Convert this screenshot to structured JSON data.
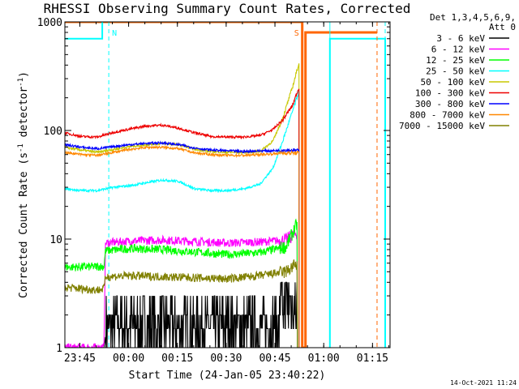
{
  "chart_data": {
    "type": "line",
    "title": "RHESSI Observing Summary Count Rates, Corrected",
    "xlabel": "Start Time (24-Jan-05 23:40:22)",
    "ylabel_parts": [
      "Corrected Count Rate (s",
      "-1",
      " detector",
      "-1",
      ")"
    ],
    "x_unit": "minutes after 23:40:22",
    "xlim": [
      0,
      100
    ],
    "ylim": [
      1,
      1000
    ],
    "yscale": "log",
    "x_ticks": [
      {
        "label": "23:45",
        "x": 4.6
      },
      {
        "label": "00:00",
        "x": 19.6
      },
      {
        "label": "00:15",
        "x": 34.6
      },
      {
        "label": "00:30",
        "x": 49.6
      },
      {
        "label": "00:45",
        "x": 64.6
      },
      {
        "label": "01:00",
        "x": 79.6
      },
      {
        "label": "01:15",
        "x": 94.6
      }
    ],
    "y_ticks": [
      {
        "label": "1",
        "y": 1
      },
      {
        "label": "10",
        "y": 10
      },
      {
        "label": "100",
        "y": 100
      },
      {
        "label": "1000",
        "y": 1000
      }
    ],
    "legend_header": [
      "Det 1,3,4,5,6,9,",
      "Att 0"
    ],
    "legend_position": "right",
    "timestamp": "14-Oct-2021 11:24",
    "series": [
      {
        "name": "3 - 6 keV",
        "color": "#000000",
        "x": [
          0,
          12,
          13,
          20,
          30,
          40,
          50,
          60,
          68,
          71.5
        ],
        "y": [
          1,
          1,
          1.6,
          1.4,
          1.5,
          1.4,
          1.6,
          1.5,
          2,
          3
        ]
      },
      {
        "name": "6 - 12 keV",
        "color": "#ff00ff",
        "x": [
          0,
          12,
          12.5,
          20,
          30,
          40,
          50,
          60,
          68,
          71.5
        ],
        "y": [
          1,
          1,
          9.2,
          9.6,
          9.8,
          9.5,
          9.2,
          9.4,
          9.8,
          11.5
        ]
      },
      {
        "name": "12 - 25 keV",
        "color": "#00ff00",
        "x": [
          0,
          12,
          12.5,
          20,
          30,
          40,
          50,
          60,
          68,
          71.5
        ],
        "y": [
          5.5,
          5.6,
          7.8,
          8.2,
          8.0,
          7.6,
          7.2,
          7.5,
          8.5,
          14
        ]
      },
      {
        "name": "25 - 50 keV",
        "color": "#00ffff",
        "x": [
          0,
          5,
          10,
          15,
          20,
          25,
          30,
          35,
          40,
          45,
          50,
          55,
          60,
          64,
          67,
          70,
          72
        ],
        "y": [
          29,
          28,
          28,
          30,
          31,
          33,
          35,
          34,
          29,
          28,
          28,
          29,
          32,
          45,
          80,
          150,
          230
        ]
      },
      {
        "name": "50 - 100 keV",
        "color": "#c8c800",
        "x": [
          0,
          5,
          10,
          15,
          20,
          25,
          30,
          35,
          40,
          45,
          50,
          55,
          60,
          64,
          67,
          70,
          72
        ],
        "y": [
          70,
          66,
          63,
          67,
          71,
          74,
          76,
          74,
          67,
          64,
          63,
          63,
          64,
          80,
          130,
          250,
          420
        ]
      },
      {
        "name": "100 - 300 keV",
        "color": "#ee0000",
        "x": [
          0,
          5,
          10,
          15,
          20,
          25,
          30,
          35,
          40,
          45,
          50,
          55,
          60,
          64,
          67,
          70,
          72
        ],
        "y": [
          95,
          88,
          87,
          96,
          103,
          110,
          112,
          105,
          95,
          88,
          87,
          87,
          90,
          102,
          125,
          170,
          250
        ]
      },
      {
        "name": "300 - 800 keV",
        "color": "#0000ff",
        "x": [
          0,
          5,
          10,
          15,
          20,
          25,
          30,
          35,
          40,
          45,
          50,
          55,
          60,
          64,
          67,
          70,
          72
        ],
        "y": [
          74,
          70,
          68,
          71,
          74,
          76,
          77,
          74,
          69,
          66,
          65,
          64,
          65,
          65,
          66,
          66,
          65
        ]
      },
      {
        "name": "800 - 7000 keV",
        "color": "#ff8800",
        "x": [
          0,
          5,
          10,
          15,
          20,
          25,
          30,
          35,
          40,
          45,
          50,
          55,
          60,
          64,
          67,
          70,
          72
        ],
        "y": [
          63,
          60,
          59,
          63,
          67,
          70,
          70,
          68,
          62,
          60,
          59,
          59,
          60,
          61,
          62,
          62,
          62
        ]
      },
      {
        "name": "7000 - 15000 keV",
        "color": "#808000",
        "x": [
          0,
          5,
          10,
          12,
          12.5,
          20,
          30,
          40,
          50,
          60,
          68,
          71.5
        ],
        "y": [
          3.6,
          3.5,
          3.4,
          3.5,
          4.5,
          4.6,
          4.5,
          4.4,
          4.3,
          4.6,
          5.0,
          6.0
        ]
      }
    ],
    "attenuator_state": {
      "color": "#ff6600",
      "x": [
        0,
        73,
        73,
        74,
        74,
        96
      ],
      "y": [
        1000,
        1000,
        1,
        1,
        800,
        800
      ]
    },
    "saa_flag": {
      "color": "#00ffff",
      "x": [
        0,
        11.5,
        11.5
      ],
      "y": [
        700,
        700,
        1000
      ]
    },
    "night_flag": {
      "color": "#00ffff",
      "x": [
        81.5,
        81.5,
        98.5,
        98.5
      ],
      "y": [
        1,
        700,
        700,
        1
      ]
    },
    "markers": [
      {
        "label": "N",
        "x": 13.5,
        "color": "#00ffff",
        "style": "dashed"
      },
      {
        "label": "S",
        "x": 73,
        "color": "#ff6600",
        "style": "solid"
      },
      {
        "x": 81.5,
        "color": "#00ffff",
        "style": "solid"
      },
      {
        "x": 96,
        "color": "#ff6600",
        "style": "dashed"
      },
      {
        "x": 98.5,
        "color": "#00ffff",
        "style": "dashed"
      }
    ]
  }
}
